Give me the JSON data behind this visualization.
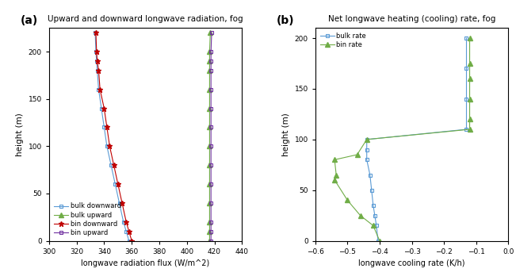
{
  "panel_a": {
    "title": "Upward and downward longwave radiation, fog",
    "xlabel": "longwave radiation flux (W/m^2)",
    "ylabel": "height (m)",
    "xlim": [
      300,
      440
    ],
    "ylim": [
      0,
      225
    ],
    "xticks": [
      300,
      320,
      340,
      360,
      380,
      400,
      420,
      440
    ],
    "yticks": [
      0,
      50,
      100,
      150,
      200
    ],
    "bulk_downward_x": [
      358,
      356,
      354,
      351,
      348,
      345,
      342,
      340,
      338,
      336,
      335,
      334.5,
      334,
      333.5
    ],
    "bulk_downward_y": [
      0,
      10,
      20,
      40,
      60,
      80,
      100,
      120,
      140,
      160,
      180,
      190,
      200,
      220
    ],
    "bulk_upward_x": [
      416.5,
      416.5,
      416.5,
      416.5,
      416.5,
      416.5,
      416.5,
      416.5,
      416.5,
      416.5,
      416.5,
      416.5,
      416.5,
      417.0
    ],
    "bulk_upward_y": [
      0,
      10,
      20,
      40,
      60,
      80,
      100,
      120,
      140,
      160,
      180,
      190,
      200,
      220
    ],
    "bin_downward_x": [
      360,
      358,
      356,
      353,
      350,
      347,
      344,
      342,
      340,
      337,
      336,
      335,
      334.5,
      334
    ],
    "bin_downward_y": [
      0,
      10,
      20,
      40,
      60,
      80,
      100,
      120,
      140,
      160,
      180,
      190,
      200,
      220
    ],
    "bin_upward_x": [
      417.5,
      417.5,
      417.5,
      417.5,
      417.5,
      417.5,
      417.5,
      417.5,
      417.5,
      417.5,
      417.5,
      417.5,
      417.5,
      418.0
    ],
    "bin_upward_y": [
      0,
      10,
      20,
      40,
      60,
      80,
      100,
      120,
      140,
      160,
      180,
      190,
      200,
      220
    ],
    "bulk_downward_color": "#5b9bd5",
    "bulk_upward_color": "#70ad47",
    "bin_downward_color": "#c00000",
    "bin_upward_color": "#7030a0",
    "legend_labels": [
      "bulk downward",
      "bulk upward",
      "bin downward",
      "bin upward"
    ]
  },
  "panel_b": {
    "title": "Net longwave heating (cooling) rate, fog",
    "xlabel": "longwave cooling rate (K/h)",
    "ylabel": "height (m)",
    "xlim": [
      -0.6,
      0.0
    ],
    "ylim": [
      0,
      210
    ],
    "xticks": [
      -0.6,
      -0.5,
      -0.4,
      -0.3,
      -0.2,
      -0.1,
      0.0
    ],
    "yticks": [
      0,
      50,
      100,
      150,
      200
    ],
    "bulk_rate_x": [
      -0.405,
      -0.41,
      -0.415,
      -0.42,
      -0.425,
      -0.43,
      -0.44,
      -0.44,
      -0.44,
      -0.13,
      -0.13,
      -0.13,
      -0.13
    ],
    "bulk_rate_y": [
      0,
      15,
      25,
      35,
      50,
      65,
      80,
      90,
      100,
      110,
      140,
      170,
      200
    ],
    "bin_rate_x": [
      -0.4,
      -0.42,
      -0.46,
      -0.5,
      -0.54,
      -0.535,
      -0.54,
      -0.47,
      -0.44,
      -0.12,
      -0.12,
      -0.12,
      -0.12,
      -0.12,
      -0.12
    ],
    "bin_rate_y": [
      0,
      15,
      25,
      40,
      60,
      65,
      80,
      85,
      100,
      110,
      120,
      140,
      160,
      175,
      200
    ],
    "bulk_rate_color": "#5b9bd5",
    "bin_rate_color": "#70ad47",
    "legend_labels": [
      "bulk rate",
      "bin rate"
    ]
  }
}
